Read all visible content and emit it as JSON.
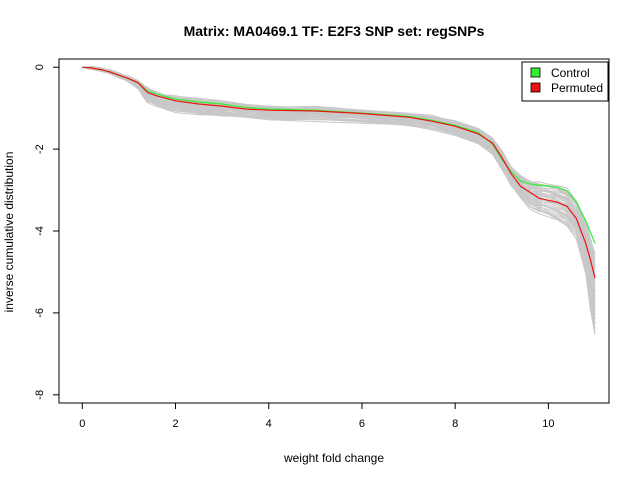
{
  "chart_data": {
    "type": "line",
    "title": "Matrix: MA0469.1 TF: E2F3 SNP set: regSNPs",
    "xlabel": "weight fold change",
    "ylabel": "inverse cumulative distribution",
    "xlim": [
      -0.5,
      11.3
    ],
    "ylim": [
      -8.2,
      0.2
    ],
    "x_ticks": [
      0,
      2,
      4,
      6,
      8,
      10
    ],
    "y_ticks": [
      0,
      -2,
      -4,
      -6,
      -8
    ],
    "grid": false,
    "legend": {
      "position": "top-right",
      "entries": [
        {
          "label": "Control",
          "color": "#33ee33"
        },
        {
          "label": "Permuted",
          "color": "#ee1111"
        }
      ]
    },
    "series": [
      {
        "name": "Control",
        "color": "#33ee33",
        "x": [
          0,
          0.2,
          0.4,
          0.6,
          0.8,
          1.0,
          1.2,
          1.3,
          1.4,
          1.6,
          1.8,
          2.0,
          2.5,
          3.0,
          3.5,
          4.0,
          5.0,
          6.0,
          7.0,
          7.5,
          8.0,
          8.5,
          8.8,
          9.0,
          9.2,
          9.4,
          9.6,
          9.8,
          10.0,
          10.2,
          10.4,
          10.6,
          10.8,
          11.0
        ],
        "y": [
          0,
          -0.02,
          -0.06,
          -0.12,
          -0.2,
          -0.28,
          -0.38,
          -0.48,
          -0.58,
          -0.66,
          -0.72,
          -0.78,
          -0.85,
          -0.9,
          -0.98,
          -1.02,
          -1.05,
          -1.12,
          -1.2,
          -1.3,
          -1.42,
          -1.6,
          -1.88,
          -2.25,
          -2.55,
          -2.78,
          -2.85,
          -2.88,
          -2.9,
          -2.93,
          -3.02,
          -3.3,
          -3.75,
          -4.3
        ]
      },
      {
        "name": "Permuted",
        "color": "#ee1111",
        "x": [
          0,
          0.2,
          0.4,
          0.6,
          0.8,
          1.0,
          1.2,
          1.3,
          1.4,
          1.6,
          1.8,
          2.0,
          2.5,
          3.0,
          3.5,
          4.0,
          5.0,
          6.0,
          7.0,
          7.5,
          8.0,
          8.5,
          8.8,
          9.0,
          9.2,
          9.4,
          9.6,
          9.8,
          10.0,
          10.2,
          10.4,
          10.6,
          10.8,
          10.9,
          11.0
        ],
        "y": [
          0,
          -0.02,
          -0.06,
          -0.12,
          -0.2,
          -0.28,
          -0.38,
          -0.5,
          -0.62,
          -0.7,
          -0.76,
          -0.82,
          -0.9,
          -0.95,
          -1.02,
          -1.05,
          -1.07,
          -1.13,
          -1.22,
          -1.32,
          -1.44,
          -1.63,
          -1.85,
          -2.2,
          -2.6,
          -2.9,
          -3.05,
          -3.2,
          -3.25,
          -3.3,
          -3.4,
          -3.7,
          -4.3,
          -4.7,
          -5.15
        ]
      }
    ],
    "background_lines": {
      "color": "#c8c8c8",
      "count": 40,
      "x": [
        0,
        0.2,
        0.4,
        0.6,
        0.8,
        1.0,
        1.2,
        1.3,
        1.4,
        1.6,
        1.8,
        2.0,
        2.5,
        3.0,
        3.5,
        4.0,
        5.0,
        6.0,
        7.0,
        7.5,
        8.0,
        8.5,
        8.8,
        9.0,
        9.2,
        9.4,
        9.6,
        9.8,
        10.0,
        10.2,
        10.4,
        10.6,
        10.8,
        10.9,
        11.0
      ],
      "y_low": [
        0,
        -0.03,
        -0.08,
        -0.15,
        -0.25,
        -0.35,
        -0.5,
        -0.7,
        -0.85,
        -0.95,
        -1.02,
        -1.08,
        -1.15,
        -1.2,
        -1.25,
        -1.28,
        -1.3,
        -1.35,
        -1.42,
        -1.52,
        -1.65,
        -1.85,
        -2.1,
        -2.5,
        -2.9,
        -3.2,
        -3.45,
        -3.55,
        -3.65,
        -3.75,
        -3.9,
        -4.2,
        -5.0,
        -5.9,
        -6.55
      ],
      "y_high": [
        0,
        -0.01,
        -0.04,
        -0.09,
        -0.16,
        -0.24,
        -0.33,
        -0.42,
        -0.52,
        -0.62,
        -0.68,
        -0.72,
        -0.78,
        -0.84,
        -0.92,
        -0.96,
        -0.98,
        -1.04,
        -1.12,
        -1.2,
        -1.32,
        -1.5,
        -1.75,
        -2.05,
        -2.45,
        -2.65,
        -2.78,
        -2.82,
        -2.85,
        -2.88,
        -2.98,
        -3.25,
        -3.75,
        -4.2,
        -4.55
      ]
    }
  }
}
